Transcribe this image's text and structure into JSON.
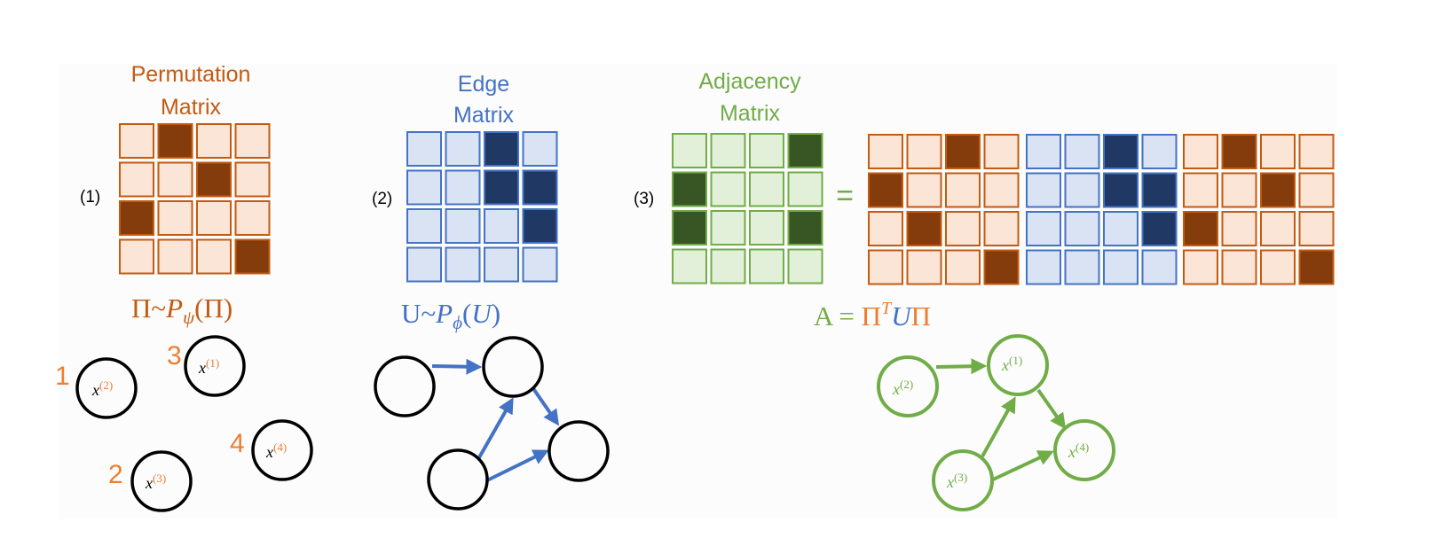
{
  "colors": {
    "perm_border": "#c55a11",
    "perm_fill": "#fbe5d6",
    "perm_on": "#843c0c",
    "edge_border": "#4472c4",
    "edge_fill": "#dae3f3",
    "edge_on": "#203864",
    "adj_border": "#70ad47",
    "adj_fill": "#e2f0d9",
    "adj_on": "#375623",
    "orange_text": "#ed7d31",
    "title_orange": "#c55a11"
  },
  "panels": [
    {
      "id": "permutation",
      "title_line1": "Permutation",
      "title_line2": "Matrix",
      "index_label": "(1)",
      "matrix": [
        [
          0,
          1,
          0,
          0
        ],
        [
          0,
          0,
          1,
          0
        ],
        [
          1,
          0,
          0,
          0
        ],
        [
          0,
          0,
          0,
          1
        ]
      ]
    },
    {
      "id": "edge",
      "title_line1": "Edge",
      "title_line2": "Matrix",
      "index_label": "(2)",
      "matrix": [
        [
          0,
          0,
          1,
          0
        ],
        [
          0,
          0,
          1,
          1
        ],
        [
          0,
          0,
          0,
          1
        ],
        [
          0,
          0,
          0,
          0
        ]
      ]
    },
    {
      "id": "adjacency",
      "title_line1": "Adjacency",
      "title_line2": "Matrix",
      "index_label": "(3)",
      "matrix": [
        [
          0,
          0,
          0,
          1
        ],
        [
          1,
          0,
          0,
          0
        ],
        [
          1,
          0,
          0,
          1
        ],
        [
          0,
          0,
          0,
          0
        ]
      ]
    }
  ],
  "equals_sign": "=",
  "product": [
    {
      "kind": "perm_T",
      "matrix": [
        [
          0,
          0,
          1,
          0
        ],
        [
          1,
          0,
          0,
          0
        ],
        [
          0,
          1,
          0,
          0
        ],
        [
          0,
          0,
          0,
          1
        ]
      ]
    },
    {
      "kind": "edge",
      "matrix": [
        [
          0,
          0,
          1,
          0
        ],
        [
          0,
          0,
          1,
          1
        ],
        [
          0,
          0,
          0,
          1
        ],
        [
          0,
          0,
          0,
          0
        ]
      ]
    },
    {
      "kind": "perm",
      "matrix": [
        [
          0,
          1,
          0,
          0
        ],
        [
          0,
          0,
          1,
          0
        ],
        [
          1,
          0,
          0,
          0
        ],
        [
          0,
          0,
          0,
          1
        ]
      ]
    }
  ],
  "formulas": {
    "perm": {
      "lhs": "Π~",
      "P": "P",
      "sub": "ψ",
      "arg": "(Π)"
    },
    "edge": {
      "lhs": "U~",
      "P": "P",
      "sub": "ϕ",
      "arg": "(",
      "U": "U",
      "close": ")"
    },
    "adj": {
      "lhs": "A = ",
      "Pi": "Π",
      "T": "T",
      "U": "U",
      "Pi2": "Π"
    }
  },
  "graph1": {
    "nodes": [
      {
        "num": "1",
        "x": "x",
        "sup": "(2)"
      },
      {
        "num": "3",
        "x": "x",
        "sup": "(1)"
      },
      {
        "num": "4",
        "x": "x",
        "sup": "(4)"
      },
      {
        "num": "2",
        "x": "x",
        "sup": "(3)"
      }
    ]
  },
  "graph3": {
    "nodes": [
      {
        "x": "x",
        "sup": "(2)"
      },
      {
        "x": "x",
        "sup": "(1)"
      },
      {
        "x": "x",
        "sup": "(4)"
      },
      {
        "x": "x",
        "sup": "(3)"
      }
    ]
  }
}
